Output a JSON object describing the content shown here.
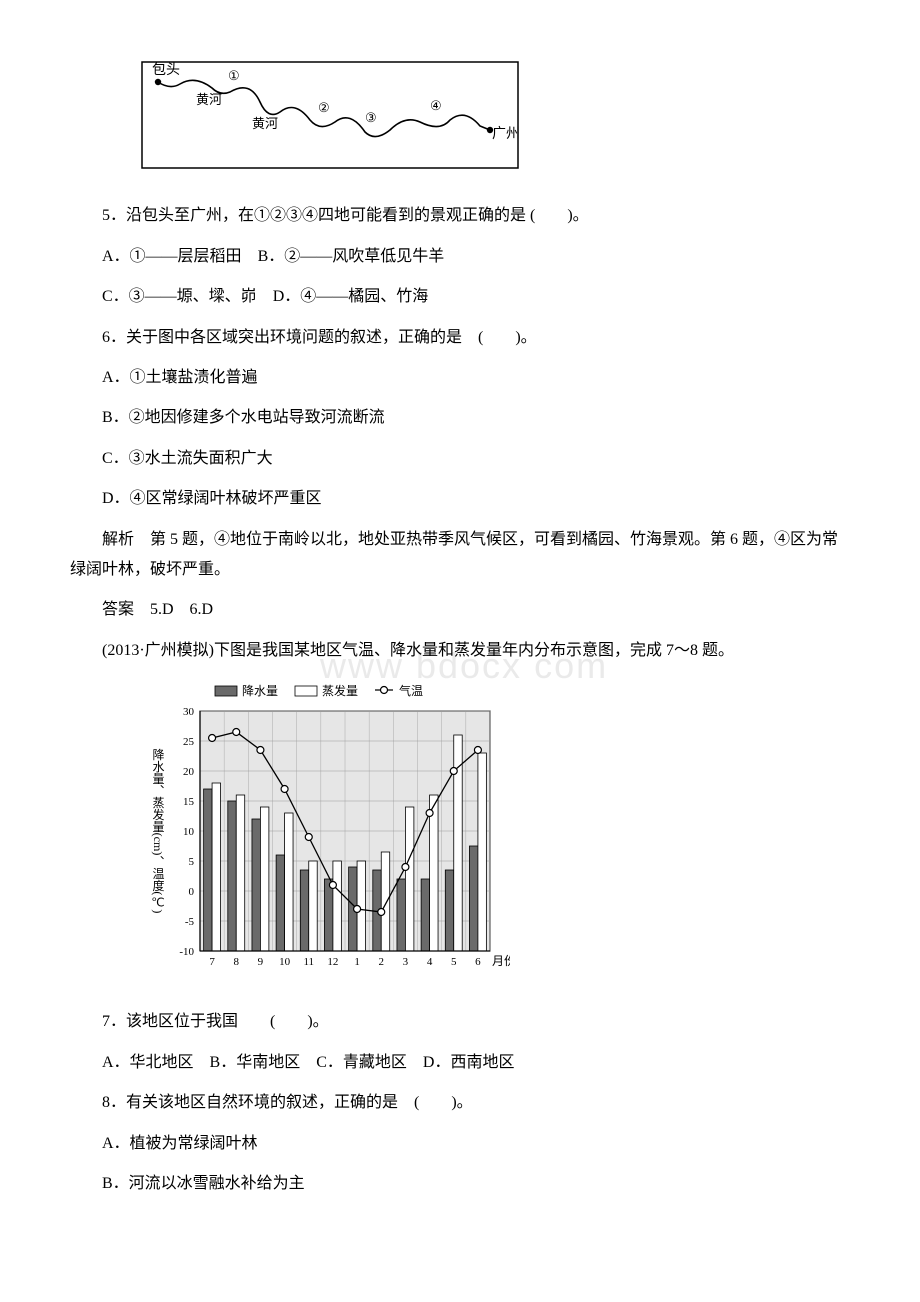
{
  "watermark": "www bdocx com",
  "map": {
    "labels": {
      "baotou": "包头",
      "huanghe1": "黄河",
      "huanghe2": "黄河",
      "guangzhou": "广州",
      "n1": "①",
      "n2": "②",
      "n3": "③",
      "n4": "④"
    },
    "frame_color": "#000",
    "line_color": "#000",
    "fontsize": 14
  },
  "q5": {
    "stem": "5．沿包头至广州，在①②③④四地可能看到的景观正确的是 (　　)。",
    "optA": "A．①——层层稻田",
    "optB": "B．②——风吹草低见牛羊",
    "optC": "C．③——塬、墚、峁",
    "optD": "D．④——橘园、竹海"
  },
  "q6": {
    "stem": "6．关于图中各区域突出环境问题的叙述，正确的是　(　　)。",
    "optA": "A．①土壤盐渍化普遍",
    "optB": "B．②地因修建多个水电站导致河流断流",
    "optC": "C．③水土流失面积广大",
    "optD": "D．④区常绿阔叶林破坏严重区"
  },
  "expl56": "解析　第 5 题，④地位于南岭以北，地处亚热带季风气候区，可看到橘园、竹海景观。第 6 题，④区为常绿阔叶林，破坏严重。",
  "ans56": "答案　5.D　6.D",
  "intro78": "(2013·广州模拟)下图是我国某地区气温、降水量和蒸发量年内分布示意图，完成 7～8 题。",
  "chart": {
    "type": "bar+line",
    "legend": {
      "precip": "降水量",
      "evap": "蒸发量",
      "temp": "气温"
    },
    "xlabel": "月份",
    "ylabel": "降水量、蒸发量(cm)、温度(℃)",
    "months": [
      "7",
      "8",
      "9",
      "10",
      "11",
      "12",
      "1",
      "2",
      "3",
      "4",
      "5",
      "6"
    ],
    "precip": [
      17,
      15,
      12,
      6,
      3.5,
      2,
      4,
      3.5,
      2,
      2,
      3.5,
      7.5
    ],
    "evap": [
      18,
      16,
      14,
      13,
      5,
      5,
      5,
      6.5,
      14,
      16,
      26,
      23
    ],
    "temp": [
      25.5,
      26.5,
      23.5,
      17,
      9,
      1,
      -3,
      -3.5,
      4,
      13,
      20,
      23.5
    ],
    "ylim": [
      -10,
      30
    ],
    "ytick_step": 5,
    "bar_width": 0.35,
    "precip_fill": "#6a6a6a",
    "evap_fill": "#ffffff",
    "bar_stroke": "#000000",
    "temp_stroke": "#000000",
    "marker_fill": "#ffffff",
    "marker_r": 3.5,
    "bg": "#e6e6e6",
    "grid_color": "#9a9a9a",
    "axis_color": "#000000",
    "label_fontsize": 12,
    "tick_fontsize": 11,
    "legend_fontsize": 12
  },
  "q7": {
    "stem": "7．该地区位于我国　　(　　)。",
    "opts": "A．华北地区　B．华南地区　C．青藏地区　D．西南地区"
  },
  "q8": {
    "stem": "8．有关该地区自然环境的叙述，正确的是　(　　)。",
    "optA": "A．植被为常绿阔叶林",
    "optB": "B．河流以冰雪融水补给为主"
  }
}
